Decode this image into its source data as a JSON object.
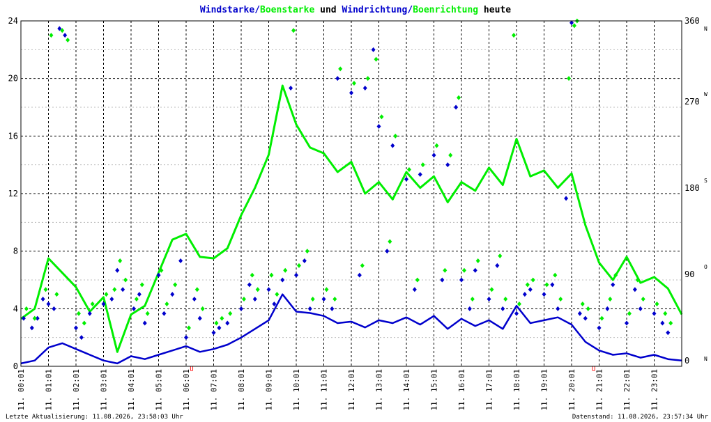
{
  "title": {
    "part1": "Windstarke/",
    "part2": "Boenstarke",
    "part3": " und ",
    "part4": "Windrichtung/",
    "part5": "Boenrichtung",
    "part6": " heute"
  },
  "footer": {
    "left": "Letzte Aktualisierung: 11.08.2026, 23:58:03 Uhr",
    "right": "Datenstand: 11.08.2026, 23:57:34 Uhr"
  },
  "colors": {
    "wind": "#0000cc",
    "gust": "#00ee00",
    "grid": "#000000",
    "marker": "#ff0000"
  },
  "chart_data": {
    "type": "line",
    "x_unit": "time of day (hours)",
    "left_axis": {
      "ylim": [
        0,
        24
      ],
      "ticks": [
        "0",
        "4",
        "8",
        "12",
        "16",
        "20",
        "24"
      ]
    },
    "right_axis": {
      "ylim": [
        0,
        360
      ],
      "ticks": [
        "0",
        "90",
        "180",
        "270",
        "360"
      ],
      "compass": [
        "N",
        "O",
        "S",
        "W",
        "N"
      ]
    },
    "x_ticks": [
      "11. 00:01",
      "11. 01:01",
      "11. 02:01",
      "11. 03:01",
      "11. 04:01",
      "11. 05:01",
      "11. 06:01",
      "11. 07:01",
      "11. 08:01",
      "11. 09:01",
      "11. 10:01",
      "11. 11:01",
      "11. 12:01",
      "11. 13:01",
      "11. 14:01",
      "11. 15:01",
      "11. 16:01",
      "11. 17:01",
      "11. 18:01",
      "11. 19:01",
      "11. 20:01",
      "11. 21:01",
      "11. 22:01",
      "11. 23:01"
    ],
    "markers": [
      {
        "hour": 6.2,
        "label": "U"
      },
      {
        "hour": 20.8,
        "label": "U"
      }
    ],
    "grid": true,
    "series": [
      {
        "name": "Windstarke",
        "type": "line",
        "axis": "left",
        "x": [
          0,
          0.5,
          1,
          1.5,
          2,
          2.5,
          3,
          3.5,
          4,
          4.5,
          5,
          5.5,
          6,
          6.5,
          7,
          7.5,
          8,
          8.5,
          9,
          9.5,
          10,
          10.5,
          11,
          11.5,
          12,
          12.5,
          13,
          13.5,
          14,
          14.5,
          15,
          15.5,
          16,
          16.5,
          17,
          17.5,
          18,
          18.5,
          19,
          19.5,
          20,
          20.5,
          21,
          21.5,
          22,
          22.5,
          23,
          23.5,
          24
        ],
        "values": [
          0.2,
          0.4,
          1.3,
          1.6,
          1.2,
          0.8,
          0.4,
          0.2,
          0.7,
          0.5,
          0.8,
          1.1,
          1.4,
          1.0,
          1.2,
          1.5,
          2.0,
          2.6,
          3.2,
          5.0,
          3.8,
          3.7,
          3.5,
          3.0,
          3.1,
          2.7,
          3.2,
          3.0,
          3.4,
          2.9,
          3.5,
          2.6,
          3.3,
          2.8,
          3.2,
          2.6,
          4.2,
          3.0,
          3.2,
          3.4,
          2.9,
          1.7,
          1.1,
          0.8,
          0.9,
          0.6,
          0.8,
          0.5,
          0.4
        ]
      },
      {
        "name": "Boenstarke",
        "type": "line",
        "axis": "left",
        "x": [
          0,
          0.5,
          1,
          1.5,
          2,
          2.5,
          3,
          3.5,
          4,
          4.5,
          5,
          5.5,
          6,
          6.5,
          7,
          7.5,
          8,
          8.5,
          9,
          9.5,
          10,
          10.5,
          11,
          11.5,
          12,
          12.5,
          13,
          13.5,
          14,
          14.5,
          15,
          15.5,
          16,
          16.5,
          17,
          17.5,
          18,
          18.5,
          19,
          19.5,
          20,
          20.5,
          21,
          21.5,
          22,
          22.5,
          23,
          23.5,
          24
        ],
        "values": [
          3.3,
          4.0,
          7.5,
          6.5,
          5.5,
          3.8,
          4.8,
          1.0,
          3.6,
          4.2,
          6.5,
          8.8,
          9.2,
          7.6,
          7.5,
          8.2,
          10.5,
          12.4,
          14.7,
          19.5,
          16.8,
          15.2,
          14.8,
          13.5,
          14.2,
          12.0,
          12.8,
          11.6,
          13.5,
          12.4,
          13.2,
          11.4,
          12.8,
          12.2,
          13.8,
          12.6,
          15.8,
          13.2,
          13.6,
          12.4,
          13.4,
          9.8,
          7.2,
          6.0,
          7.6,
          5.8,
          6.2,
          5.4,
          3.6
        ]
      },
      {
        "name": "Windrichtung",
        "type": "scatter",
        "axis": "right",
        "x": [
          0.1,
          0.4,
          0.8,
          1.2,
          1.6,
          2.0,
          2.5,
          3.0,
          3.3,
          3.7,
          4.1,
          4.5,
          5.0,
          5.5,
          6.0,
          6.5,
          7.0,
          7.5,
          8.0,
          8.5,
          9.0,
          9.5,
          10.0,
          10.5,
          11.0,
          11.5,
          12.0,
          12.5,
          13.0,
          13.5,
          14.0,
          14.5,
          15.0,
          15.5,
          16.0,
          16.5,
          17.0,
          17.5,
          18.0,
          18.5,
          19.0,
          19.5,
          20.0,
          20.5,
          21.0,
          21.5,
          22.0,
          22.5,
          23.0,
          23.5,
          0.6,
          1.0,
          2.2,
          3.5,
          4.3,
          5.2,
          6.3,
          7.2,
          8.3,
          9.2,
          10.3,
          11.3,
          12.3,
          13.3,
          14.3,
          15.3,
          16.3,
          17.3,
          18.3,
          19.3,
          20.3,
          21.3,
          22.3,
          23.3,
          1.4,
          5.8,
          9.8,
          12.8,
          15.8,
          19.8
        ],
        "values": [
          50,
          40,
          70,
          60,
          345,
          40,
          55,
          65,
          70,
          80,
          60,
          45,
          95,
          75,
          30,
          50,
          35,
          45,
          60,
          70,
          80,
          90,
          95,
          60,
          70,
          300,
          285,
          290,
          250,
          230,
          195,
          200,
          220,
          210,
          90,
          100,
          70,
          60,
          55,
          80,
          75,
          60,
          358,
          50,
          40,
          85,
          45,
          60,
          55,
          35,
          50,
          65,
          30,
          100,
          75,
          55,
          70,
          40,
          85,
          65,
          110,
          60,
          95,
          120,
          80,
          90,
          60,
          105,
          75,
          85,
          55,
          60,
          80,
          45,
          352,
          110,
          290,
          330,
          270,
          175
        ]
      },
      {
        "name": "Boenrichtung",
        "type": "scatter",
        "axis": "right",
        "x": [
          0.2,
          0.5,
          0.9,
          1.3,
          1.7,
          2.1,
          2.6,
          3.1,
          3.4,
          3.8,
          4.2,
          4.6,
          5.1,
          5.6,
          6.1,
          6.6,
          7.1,
          7.6,
          8.1,
          8.6,
          9.1,
          9.6,
          10.1,
          10.6,
          11.1,
          11.6,
          12.1,
          12.6,
          13.1,
          13.6,
          14.1,
          14.6,
          15.1,
          15.6,
          16.1,
          16.6,
          17.1,
          17.6,
          18.1,
          18.6,
          19.1,
          19.6,
          20.1,
          20.6,
          21.1,
          21.6,
          22.1,
          22.6,
          23.1,
          23.6,
          1.1,
          1.5,
          2.3,
          3.6,
          4.4,
          5.3,
          6.4,
          7.3,
          8.4,
          9.3,
          10.4,
          11.4,
          12.4,
          13.4,
          14.4,
          15.4,
          16.4,
          17.4,
          18.4,
          19.4,
          20.4,
          21.4,
          22.4,
          23.4,
          9.9,
          12.9,
          15.9,
          17.9,
          19.9,
          20.2
        ],
        "values": [
          60,
          50,
          80,
          75,
          340,
          55,
          65,
          75,
          80,
          90,
          70,
          55,
          100,
          85,
          40,
          60,
          45,
          55,
          70,
          80,
          95,
          100,
          105,
          70,
          80,
          310,
          295,
          300,
          260,
          240,
          205,
          210,
          230,
          220,
          100,
          110,
          80,
          70,
          65,
          90,
          85,
          70,
          355,
          60,
          50,
          95,
          55,
          70,
          65,
          45,
          345,
          350,
          45,
          110,
          85,
          65,
          80,
          50,
          95,
          75,
          120,
          70,
          105,
          130,
          90,
          100,
          70,
          115,
          85,
          95,
          65,
          70,
          90,
          55,
          350,
          320,
          280,
          345,
          300,
          360
        ]
      }
    ]
  }
}
